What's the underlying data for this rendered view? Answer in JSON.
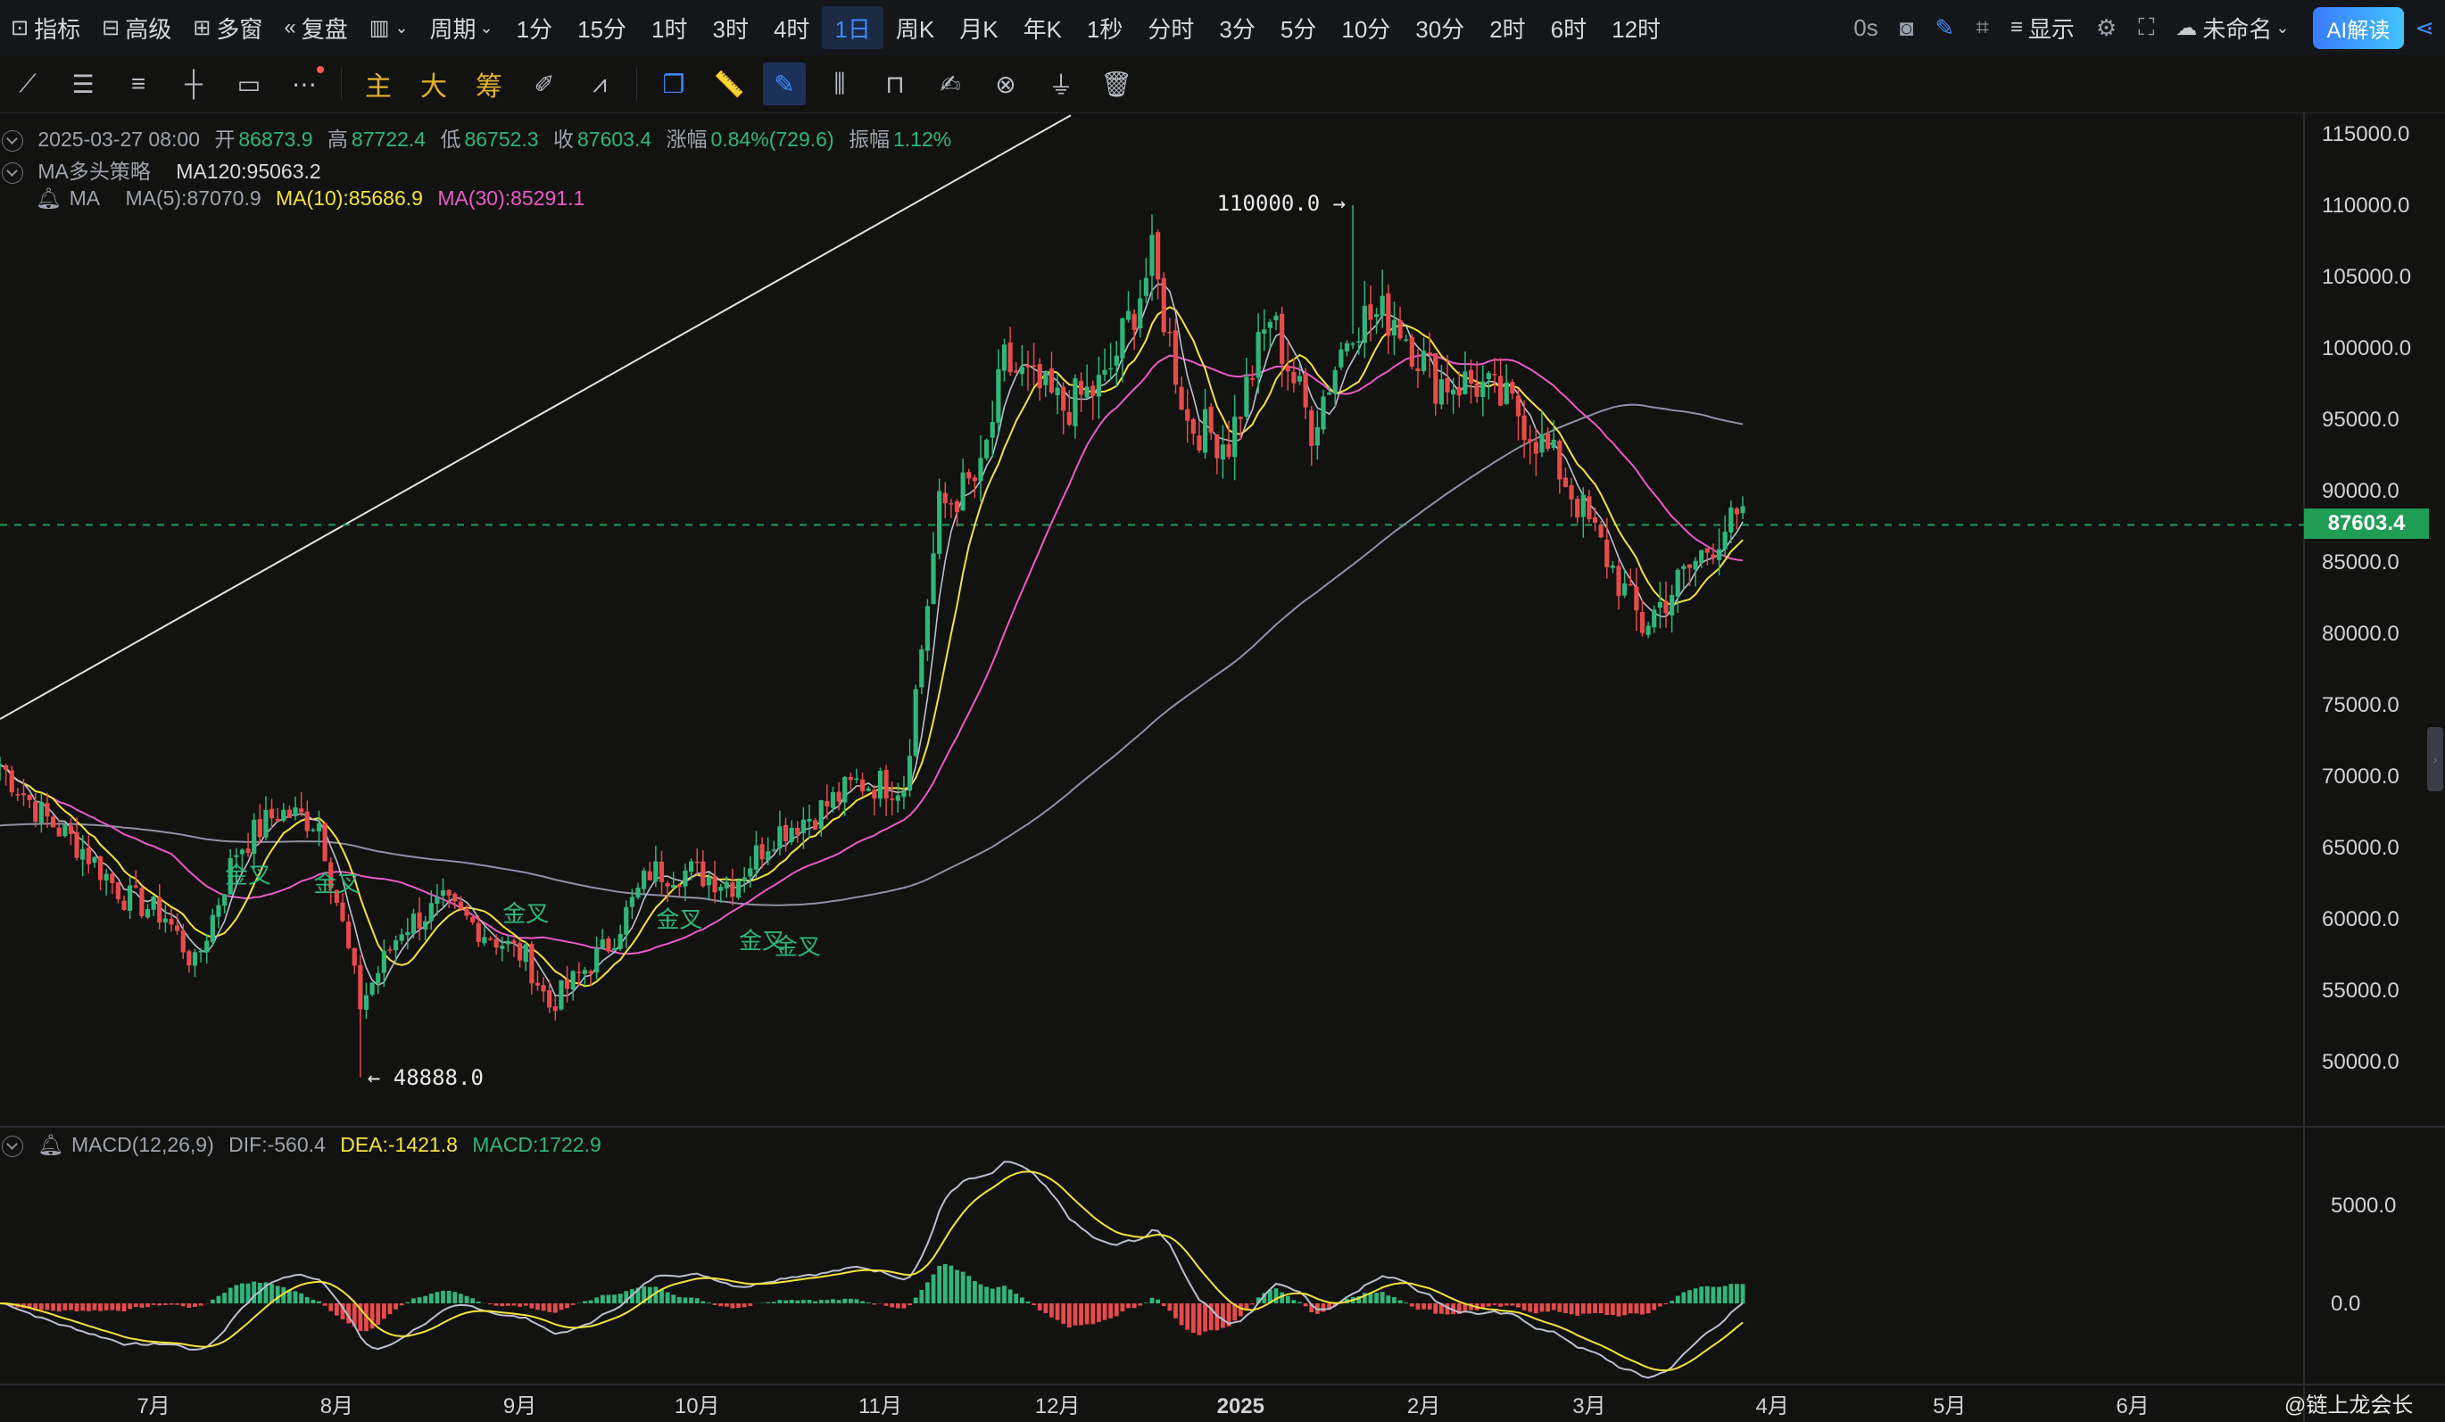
{
  "topbar": {
    "indicators": "指标",
    "advanced": "高级",
    "multi_window": "多窗",
    "replay": "复盘",
    "period_label": "周期",
    "periods": [
      "1分",
      "15分",
      "1时",
      "3时",
      "4时",
      "1日",
      "周K",
      "月K",
      "年K",
      "1秒",
      "分时",
      "3分",
      "5分",
      "10分",
      "30分",
      "2时",
      "6时",
      "12时"
    ],
    "active_period": "1日",
    "latency": "0s",
    "display": "显示",
    "layout_name": "未命名",
    "ai_button": "AI解读"
  },
  "toolbar2": {
    "main_label": "主",
    "big_label": "大",
    "chips_label": "筹"
  },
  "legend": {
    "date": "2025-03-27 08:00",
    "open_label": "开",
    "open": "86873.9",
    "high_label": "高",
    "high": "87722.4",
    "low_label": "低",
    "low": "86752.3",
    "close_label": "收",
    "close": "87603.4",
    "change_label": "涨幅",
    "change": "0.84%(729.6)",
    "amp_label": "振幅",
    "amp": "1.12%",
    "strategy": "MA多头策略",
    "ma120": "MA120:95063.2",
    "ma_label": "MA",
    "ma5": "MA(5):87070.9",
    "ma10": "MA(10):85686.9",
    "ma30": "MA(30):85291.1",
    "macd_label": "MACD(12,26,9)",
    "dif": "DIF:-560.4",
    "dea": "DEA:-1421.8",
    "macd": "MACD:1722.9"
  },
  "price_axis": [
    "115000.0",
    "110000.0",
    "105000.0",
    "100000.0",
    "95000.0",
    "90000.0",
    "85000.0",
    "80000.0",
    "75000.0",
    "70000.0",
    "65000.0",
    "60000.0",
    "55000.0",
    "50000.0"
  ],
  "macd_axis": [
    "5000.0",
    "0.0"
  ],
  "time_axis": [
    "7月",
    "8月",
    "9月",
    "10月",
    "11月",
    "12月",
    "2025",
    "2月",
    "3月",
    "4月",
    "5月",
    "6月"
  ],
  "current_price": "87603.4",
  "annotations": {
    "high_mark": "110000.0",
    "low_mark": "48888.0",
    "golden_cross": "金叉"
  },
  "watermark": "@链上龙会长",
  "colors": {
    "up": "#2fb67a",
    "down": "#e84a4a",
    "ma5": "#b9bfd0",
    "ma10": "#f5e33b",
    "ma30": "#e95bc8",
    "ma120": "#8e90a8",
    "accent": "#3d8bff"
  },
  "chart_data": {
    "type": "candlestick",
    "title": "",
    "x_range": [
      "2024-06-05",
      "2025-06-30"
    ],
    "y_range": [
      46000,
      116000
    ],
    "close_series_approx": [
      [
        "2024-06-05",
        70800
      ],
      [
        "2024-06-12",
        67300
      ],
      [
        "2024-06-19",
        64900
      ],
      [
        "2024-06-26",
        61600
      ],
      [
        "2024-07-03",
        60200
      ],
      [
        "2024-07-08",
        56700
      ],
      [
        "2024-07-15",
        64800
      ],
      [
        "2024-07-22",
        67500
      ],
      [
        "2024-07-29",
        66800
      ],
      [
        "2024-08-05",
        54000
      ],
      [
        "2024-08-12",
        59400
      ],
      [
        "2024-08-19",
        61000
      ],
      [
        "2024-08-26",
        59100
      ],
      [
        "2024-09-02",
        57300
      ],
      [
        "2024-09-06",
        53900
      ],
      [
        "2024-09-16",
        58200
      ],
      [
        "2024-09-23",
        63300
      ],
      [
        "2024-09-30",
        63300
      ],
      [
        "2024-10-07",
        62500
      ],
      [
        "2024-10-14",
        66000
      ],
      [
        "2024-10-21",
        67400
      ],
      [
        "2024-10-28",
        69500
      ],
      [
        "2024-11-05",
        69400
      ],
      [
        "2024-11-11",
        88700
      ],
      [
        "2024-11-18",
        91000
      ],
      [
        "2024-11-22",
        98900
      ],
      [
        "2024-12-02",
        95800
      ],
      [
        "2024-12-09",
        97500
      ],
      [
        "2024-12-17",
        106100
      ],
      [
        "2024-12-23",
        94800
      ],
      [
        "2024-12-30",
        93400
      ],
      [
        "2025-01-06",
        102200
      ],
      [
        "2025-01-13",
        94500
      ],
      [
        "2025-01-20",
        102000
      ],
      [
        "2025-01-27",
        102300
      ],
      [
        "2025-02-03",
        97700
      ],
      [
        "2025-02-10",
        97500
      ],
      [
        "2025-02-17",
        95500
      ],
      [
        "2025-02-24",
        91500
      ],
      [
        "2025-03-03",
        86100
      ],
      [
        "2025-03-10",
        80500
      ],
      [
        "2025-03-17",
        84000
      ],
      [
        "2025-03-24",
        87500
      ],
      [
        "2025-03-27",
        87603.4
      ]
    ],
    "annotations": [
      {
        "label": "110000.0",
        "date": "2025-01-20",
        "price": 110000
      },
      {
        "label": "48888.0",
        "date": "2024-08-05",
        "price": 48888
      }
    ],
    "indicators": {
      "MA5": 87070.9,
      "MA10": 85686.9,
      "MA30": 85291.1,
      "MA120": 95063.2,
      "DIF": -560.4,
      "DEA": -1421.8,
      "MACD": 1722.9
    },
    "macd_range": [
      -1500,
      7500
    ]
  }
}
